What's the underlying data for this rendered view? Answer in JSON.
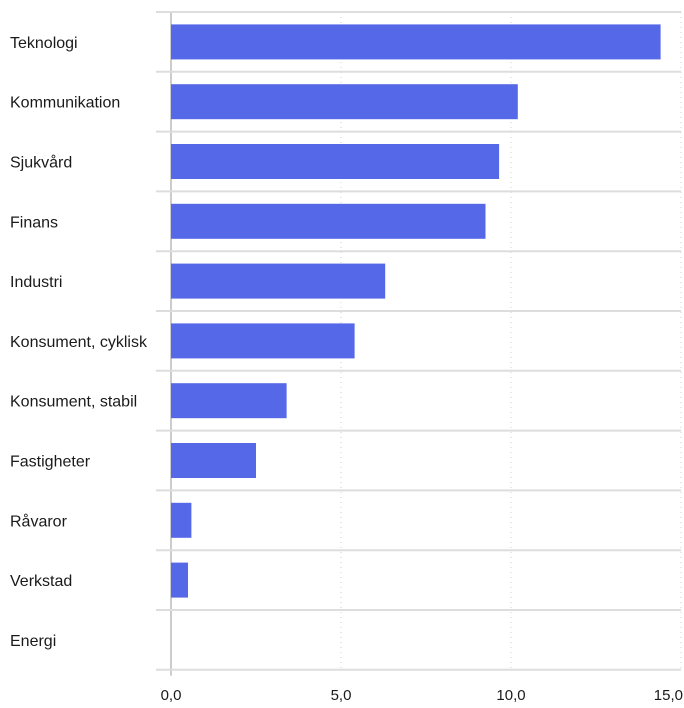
{
  "chart_data": {
    "type": "bar",
    "orientation": "horizontal",
    "categories": [
      "Teknologi",
      "Kommunikation",
      "Sjukvård",
      "Finans",
      "Industri",
      "Konsument, cyklisk",
      "Konsument, stabil",
      "Fastigheter",
      "Råvaror",
      "Verkstad",
      "Energi"
    ],
    "values": [
      14.4,
      10.2,
      9.65,
      9.25,
      6.3,
      5.4,
      3.4,
      2.5,
      0.6,
      0.5,
      0.0
    ],
    "xlim": [
      0,
      15
    ],
    "xticks": [
      0,
      5,
      10,
      15
    ],
    "xtick_labels": [
      "0,0",
      "5,0",
      "10,0",
      "15,0"
    ],
    "grid": "vertical dotted at ticks, horizontal separators between categories",
    "title": "",
    "xlabel": "",
    "ylabel": "",
    "bar_color": "#5569e8",
    "gridline_color": "#dddddd"
  }
}
